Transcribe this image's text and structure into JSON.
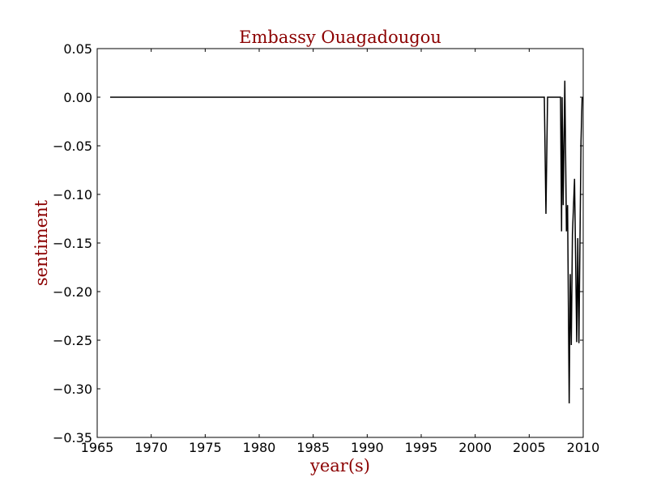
{
  "chart_data": {
    "type": "line",
    "title": "Embassy Ouagadougou",
    "xlabel": "year(s)",
    "ylabel": "sentiment",
    "xlim": [
      1965,
      2010
    ],
    "ylim": [
      -0.35,
      0.05
    ],
    "x_ticks": [
      1965,
      1970,
      1975,
      1980,
      1985,
      1990,
      1995,
      2000,
      2005,
      2010
    ],
    "x_tick_labels": [
      "1965",
      "1970",
      "1975",
      "1980",
      "1985",
      "1990",
      "1995",
      "2000",
      "2005",
      "2010"
    ],
    "y_ticks": [
      0.05,
      0.0,
      -0.05,
      -0.1,
      -0.15,
      -0.2,
      -0.25,
      -0.3,
      -0.35
    ],
    "y_tick_labels": [
      "0.05",
      "0.00",
      "−0.05",
      "−0.10",
      "−0.15",
      "−0.20",
      "−0.25",
      "−0.30",
      "−0.35"
    ],
    "grid": false,
    "colors": {
      "title": "#8b0000",
      "axis_label": "#8b0000",
      "line": "#000000"
    },
    "series": [
      {
        "x": [
          1966.2,
          2006.4,
          2006.55,
          2006.7,
          2007.9,
          2008.0,
          2008.05,
          2008.15,
          2008.3,
          2008.45,
          2008.55,
          2008.7,
          2008.8,
          2008.9,
          2009.0,
          2009.2,
          2009.4,
          2009.5,
          2009.6,
          2009.8,
          2009.9
        ],
        "y": [
          0.0,
          0.0,
          -0.12,
          0.0,
          0.0,
          -0.138,
          0.0,
          -0.111,
          0.017,
          -0.138,
          -0.111,
          -0.315,
          -0.182,
          -0.255,
          -0.141,
          -0.084,
          -0.252,
          -0.145,
          -0.253,
          -0.045,
          0.0
        ]
      }
    ]
  }
}
